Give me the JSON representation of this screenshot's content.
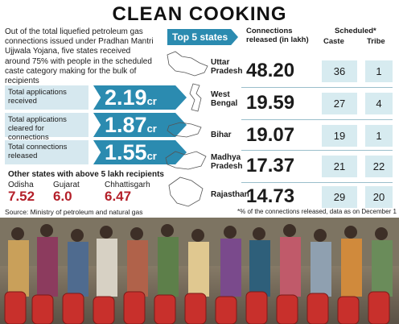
{
  "title": "CLEAN COOKING",
  "intro": "Out of the total liquefied petroleum gas connections issued under Pradhan Mantri Ujjwala Yojana, five states received around 75% with people in the scheduled caste category making for the bulk of recipients",
  "stats": [
    {
      "label": "Total applications received",
      "value": "2.19",
      "unit": "cr"
    },
    {
      "label": "Total applications cleared for connections",
      "value": "1.87",
      "unit": "cr"
    },
    {
      "label": "Total connections released",
      "value": "1.55",
      "unit": "cr"
    }
  ],
  "other_states": {
    "title": "Other states with above 5 lakh recipients",
    "items": [
      {
        "name": "Odisha",
        "value": "7.52"
      },
      {
        "name": "Gujarat",
        "value": "6.0"
      },
      {
        "name": "Chhattisgarh",
        "value": "6.47"
      }
    ]
  },
  "top5": {
    "label": "Top 5 states",
    "col_connections": "Connections released (in lakh)",
    "col_scheduled": "Scheduled*",
    "col_caste": "Caste",
    "col_tribe": "Tribe",
    "rows": [
      {
        "state": "Uttar Pradesh",
        "connections": "48.20",
        "caste": "36",
        "tribe": "1"
      },
      {
        "state": "West Bengal",
        "connections": "19.59",
        "caste": "27",
        "tribe": "4"
      },
      {
        "state": "Bihar",
        "connections": "19.07",
        "caste": "19",
        "tribe": "1"
      },
      {
        "state": "Madhya Pradesh",
        "connections": "17.37",
        "caste": "21",
        "tribe": "22"
      },
      {
        "state": "Rajasthan",
        "connections": "14.73",
        "caste": "29",
        "tribe": "20"
      }
    ]
  },
  "source": "Source: Ministry of petroleum and natural gas",
  "footnote": "*% of the connections released, data as on December 1",
  "colors": {
    "accent": "#2b8bb0",
    "highlight": "#b4202a",
    "cell": "#d7ebf0"
  }
}
